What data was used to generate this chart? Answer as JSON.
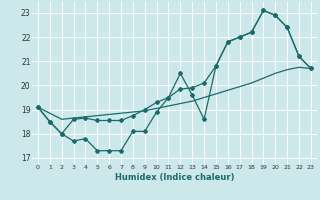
{
  "xlabel": "Humidex (Indice chaleur)",
  "bg_color": "#cce8ea",
  "line_color": "#1a6b6b",
  "grid_color": "#ffffff",
  "xlim": [
    -0.5,
    23.5
  ],
  "ylim": [
    16.75,
    23.45
  ],
  "xticks": [
    0,
    1,
    2,
    3,
    4,
    5,
    6,
    7,
    8,
    9,
    10,
    11,
    12,
    13,
    14,
    15,
    16,
    17,
    18,
    19,
    20,
    21,
    22,
    23
  ],
  "yticks": [
    17,
    18,
    19,
    20,
    21,
    22,
    23
  ],
  "line1_x": [
    0,
    1,
    2,
    3,
    4,
    5,
    6,
    7,
    8,
    9,
    10,
    11,
    12,
    13,
    14,
    15,
    16,
    17,
    18,
    19,
    20,
    21,
    22,
    23
  ],
  "line1_y": [
    19.1,
    18.5,
    18.0,
    17.7,
    17.8,
    17.3,
    17.3,
    17.3,
    18.1,
    18.1,
    18.9,
    19.5,
    20.5,
    19.6,
    18.6,
    20.8,
    21.8,
    22.0,
    22.2,
    23.1,
    22.9,
    22.4,
    21.2,
    20.7
  ],
  "line2_x": [
    0,
    1,
    2,
    3,
    4,
    5,
    6,
    7,
    8,
    9,
    10,
    11,
    12,
    13,
    14,
    15,
    16,
    17,
    18,
    19,
    20,
    21,
    22,
    23
  ],
  "line2_y": [
    19.1,
    18.85,
    18.6,
    18.65,
    18.7,
    18.75,
    18.8,
    18.85,
    18.9,
    18.95,
    19.05,
    19.15,
    19.25,
    19.35,
    19.5,
    19.65,
    19.8,
    19.95,
    20.1,
    20.3,
    20.5,
    20.65,
    20.75,
    20.7
  ],
  "line3_x": [
    0,
    1,
    2,
    3,
    4,
    5,
    6,
    7,
    8,
    9,
    10,
    11,
    12,
    13,
    14,
    15,
    16,
    17,
    18,
    19,
    20,
    21,
    22,
    23
  ],
  "line3_y": [
    19.1,
    18.5,
    18.0,
    18.6,
    18.65,
    18.55,
    18.55,
    18.55,
    18.75,
    19.0,
    19.3,
    19.5,
    19.85,
    19.9,
    20.1,
    20.8,
    21.8,
    22.0,
    22.2,
    23.1,
    22.9,
    22.4,
    21.2,
    20.7
  ]
}
